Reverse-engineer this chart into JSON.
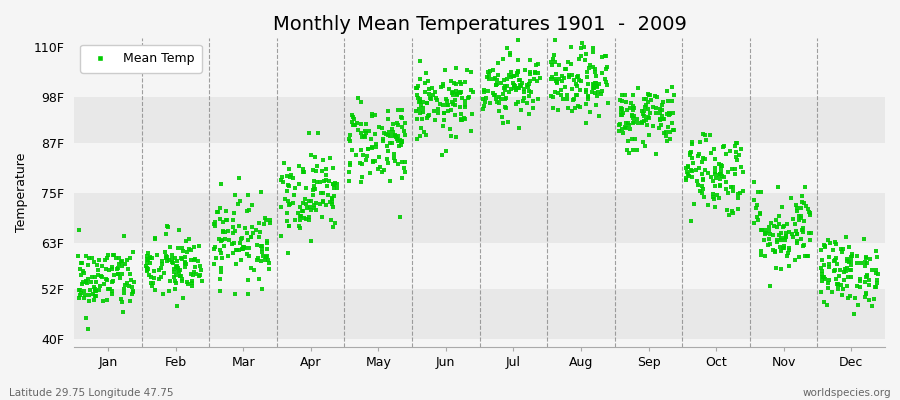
{
  "title": "Monthly Mean Temperatures 1901  -  2009",
  "ylabel": "Temperature",
  "bottom_left": "Latitude 29.75 Longitude 47.75",
  "bottom_right": "worldspecies.org",
  "legend_label": "Mean Temp",
  "yticks": [
    40,
    52,
    63,
    75,
    87,
    98,
    110
  ],
  "ytick_labels": [
    "40F",
    "52F",
    "63F",
    "75F",
    "87F",
    "98F",
    "110F"
  ],
  "ylim": [
    38,
    112
  ],
  "months": [
    "Jan",
    "Feb",
    "Mar",
    "Apr",
    "May",
    "Jun",
    "Jul",
    "Aug",
    "Sep",
    "Oct",
    "Nov",
    "Dec"
  ],
  "month_centers": [
    0.5,
    1.5,
    2.5,
    3.5,
    4.5,
    5.5,
    6.5,
    7.5,
    8.5,
    9.5,
    10.5,
    11.5
  ],
  "dot_color": "#00cc00",
  "background_color": "#f5f5f5",
  "band_light": "#f5f5f5",
  "band_dark": "#e8e8e8",
  "n_years": 109,
  "mean_temps_F": [
    54,
    57,
    64,
    75,
    87,
    96,
    101,
    101,
    93,
    80,
    66,
    56
  ],
  "std_temps_F": [
    4,
    4,
    5,
    5,
    5,
    4,
    4,
    4,
    4,
    5,
    5,
    4
  ],
  "title_fontsize": 14,
  "axis_label_fontsize": 9,
  "tick_fontsize": 9,
  "dot_size": 8,
  "dot_alpha": 0.9
}
